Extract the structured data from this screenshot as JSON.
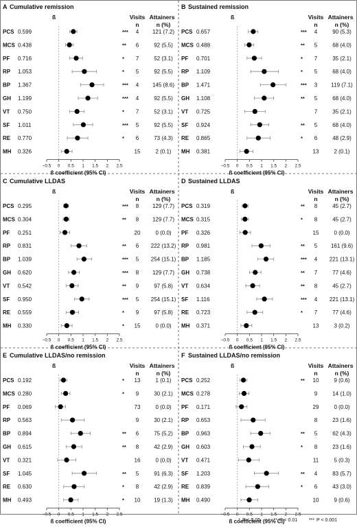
{
  "chart_data": [
    {
      "type": "forest",
      "panel": "A",
      "title": "Cumulative remission",
      "estimate_header": "ß",
      "visits_header": [
        "Visits",
        "n"
      ],
      "attainers_header": [
        "Attainers",
        "n (%)"
      ],
      "xlabel": "ß coefficient (95% CI)",
      "xticks": [
        "−0.5",
        "0",
        "0.5",
        "1",
        "1.5",
        "2",
        "2.5"
      ],
      "xlim": [
        -0.5,
        2.5
      ],
      "reference_line": 0,
      "rows": [
        {
          "label": "PCS",
          "beta_text": "0.599",
          "beta": 0.599,
          "lower": 0.45,
          "upper": 0.75,
          "sig": "***",
          "visits": "4",
          "attainers": "121 (7.2)"
        },
        {
          "label": "MCS",
          "beta_text": "0.438",
          "beta": 0.438,
          "lower": 0.28,
          "upper": 0.6,
          "sig": "**",
          "visits": "6",
          "attainers": "92 (5.5)"
        },
        {
          "label": "PF",
          "beta_text": "0.716",
          "beta": 0.716,
          "lower": 0.45,
          "upper": 0.98,
          "sig": "*",
          "visits": "7",
          "attainers": "52 (3.1)"
        },
        {
          "label": "RP",
          "beta_text": "1.053",
          "beta": 1.053,
          "lower": 0.55,
          "upper": 1.55,
          "sig": "*",
          "visits": "5",
          "attainers": "92 (5.5)"
        },
        {
          "label": "BP",
          "beta_text": "1.367",
          "beta": 1.367,
          "lower": 0.9,
          "upper": 1.85,
          "sig": "***",
          "visits": "4",
          "attainers": "145 (8.6)"
        },
        {
          "label": "GH",
          "beta_text": "1.199",
          "beta": 1.199,
          "lower": 0.8,
          "upper": 1.6,
          "sig": "***",
          "visits": "4",
          "attainers": "92 (5.5)"
        },
        {
          "label": "VT",
          "beta_text": "0.750",
          "beta": 0.75,
          "lower": 0.45,
          "upper": 1.05,
          "sig": "*",
          "visits": "7",
          "attainers": "52 (3.1)"
        },
        {
          "label": "SF",
          "beta_text": "1.011",
          "beta": 1.011,
          "lower": 0.6,
          "upper": 1.4,
          "sig": "***",
          "visits": "5",
          "attainers": "92 (5.5)"
        },
        {
          "label": "RE",
          "beta_text": "0.770",
          "beta": 0.77,
          "lower": 0.35,
          "upper": 1.2,
          "sig": "*",
          "visits": "6",
          "attainers": "73 (4.3)"
        },
        {
          "label": "MH",
          "beta_text": "0.326",
          "beta": 0.326,
          "lower": 0.1,
          "upper": 0.55,
          "sig": "",
          "visits": "15",
          "attainers": "2 (0.1)"
        }
      ]
    },
    {
      "type": "forest",
      "panel": "B",
      "title": "Sustained remission",
      "estimate_header": "ß",
      "visits_header": [
        "Visits",
        "n"
      ],
      "attainers_header": [
        "Attainers",
        "n (%)"
      ],
      "xlabel": "ß coefficient (95% CI)",
      "xticks": [
        "−0.5",
        "0",
        "0.5",
        "1",
        "1.5",
        "2",
        "2.5"
      ],
      "xlim": [
        -0.5,
        2.5
      ],
      "reference_line": 0,
      "rows": [
        {
          "label": "PCS",
          "beta_text": "0.657",
          "beta": 0.657,
          "lower": 0.45,
          "upper": 0.85,
          "sig": "***",
          "visits": "4",
          "attainers": "90 (5.3)"
        },
        {
          "label": "MCS",
          "beta_text": "0.488",
          "beta": 0.488,
          "lower": 0.3,
          "upper": 0.68,
          "sig": "**",
          "visits": "5",
          "attainers": "68 (4.0)"
        },
        {
          "label": "PF",
          "beta_text": "0.701",
          "beta": 0.701,
          "lower": 0.4,
          "upper": 1.0,
          "sig": "*",
          "visits": "7",
          "attainers": "35 (2.1)"
        },
        {
          "label": "RP",
          "beta_text": "1.109",
          "beta": 1.109,
          "lower": 0.55,
          "upper": 1.7,
          "sig": "*",
          "visits": "5",
          "attainers": "68 (4.0)"
        },
        {
          "label": "BP",
          "beta_text": "1.471",
          "beta": 1.471,
          "lower": 0.95,
          "upper": 2.0,
          "sig": "***",
          "visits": "3",
          "attainers": "119 (7.1)"
        },
        {
          "label": "GH",
          "beta_text": "1.108",
          "beta": 1.108,
          "lower": 0.7,
          "upper": 1.5,
          "sig": "**",
          "visits": "5",
          "attainers": "68 (4.0)"
        },
        {
          "label": "VT",
          "beta_text": "0.725",
          "beta": 0.725,
          "lower": 0.3,
          "upper": 1.15,
          "sig": "",
          "visits": "7",
          "attainers": "35 (2.1)"
        },
        {
          "label": "SF",
          "beta_text": "0.924",
          "beta": 0.924,
          "lower": 0.55,
          "upper": 1.3,
          "sig": "**",
          "visits": "5",
          "attainers": "68 (4.0)"
        },
        {
          "label": "RE",
          "beta_text": "0.865",
          "beta": 0.865,
          "lower": 0.4,
          "upper": 1.35,
          "sig": "*",
          "visits": "6",
          "attainers": "48 (2.9)"
        },
        {
          "label": "MH",
          "beta_text": "0.381",
          "beta": 0.381,
          "lower": 0.1,
          "upper": 0.65,
          "sig": "",
          "visits": "13",
          "attainers": "2 (0.1)"
        }
      ]
    },
    {
      "type": "forest",
      "panel": "C",
      "title": "Cumulative LLDAS",
      "estimate_header": "ß",
      "visits_header": [
        "Visits",
        "n"
      ],
      "attainers_header": [
        "Attainers",
        "n (%)"
      ],
      "xlabel": "ß coefficient (95% CI)",
      "xticks": [
        "−0.5",
        "0",
        "0.5",
        "1",
        "1.5",
        "2",
        "2.5"
      ],
      "xlim": [
        -0.5,
        2.5
      ],
      "reference_line": 0,
      "rows": [
        {
          "label": "PCS",
          "beta_text": "0.295",
          "beta": 0.295,
          "lower": 0.2,
          "upper": 0.4,
          "sig": "***",
          "visits": "8",
          "attainers": "129 (7.7)"
        },
        {
          "label": "MCS",
          "beta_text": "0.304",
          "beta": 0.304,
          "lower": 0.18,
          "upper": 0.43,
          "sig": "**",
          "visits": "8",
          "attainers": "129 (7.7)"
        },
        {
          "label": "PF",
          "beta_text": "0.251",
          "beta": 0.251,
          "lower": 0.05,
          "upper": 0.45,
          "sig": "",
          "visits": "20",
          "attainers": "0 (0.0)"
        },
        {
          "label": "RP",
          "beta_text": "0.831",
          "beta": 0.831,
          "lower": 0.5,
          "upper": 1.15,
          "sig": "**",
          "visits": "6",
          "attainers": "222 (13.2)"
        },
        {
          "label": "BP",
          "beta_text": "1.039",
          "beta": 1.039,
          "lower": 0.75,
          "upper": 1.35,
          "sig": "***",
          "visits": "5",
          "attainers": "254 (15.1)"
        },
        {
          "label": "GH",
          "beta_text": "0.620",
          "beta": 0.62,
          "lower": 0.4,
          "upper": 0.85,
          "sig": "***",
          "visits": "8",
          "attainers": "129 (7.7)"
        },
        {
          "label": "VT",
          "beta_text": "0.542",
          "beta": 0.542,
          "lower": 0.3,
          "upper": 0.8,
          "sig": "**",
          "visits": "9",
          "attainers": "97 (5.8)"
        },
        {
          "label": "SF",
          "beta_text": "0.950",
          "beta": 0.95,
          "lower": 0.65,
          "upper": 1.25,
          "sig": "***",
          "visits": "5",
          "attainers": "254 (15.1)"
        },
        {
          "label": "RE",
          "beta_text": "0.559",
          "beta": 0.559,
          "lower": 0.3,
          "upper": 0.82,
          "sig": "*",
          "visits": "9",
          "attainers": "97 (5.8)"
        },
        {
          "label": "MH",
          "beta_text": "0.330",
          "beta": 0.33,
          "lower": 0.1,
          "upper": 0.55,
          "sig": "*",
          "visits": "15",
          "attainers": "0 (0.0)"
        }
      ]
    },
    {
      "type": "forest",
      "panel": "D",
      "title": "Sustained LLDAS",
      "estimate_header": "ß",
      "visits_header": [
        "Visits",
        "n"
      ],
      "attainers_header": [
        "Attainers",
        "n (%)"
      ],
      "xlabel": "ß coefficient (95% CI)",
      "xticks": [
        "−0.5",
        "0",
        "0.5",
        "1",
        "1.5",
        "2",
        "2.5"
      ],
      "xlim": [
        -0.5,
        2.5
      ],
      "reference_line": 0,
      "rows": [
        {
          "label": "PCS",
          "beta_text": "0.319",
          "beta": 0.319,
          "lower": 0.2,
          "upper": 0.44,
          "sig": "**",
          "visits": "8",
          "attainers": "45 (2.7)"
        },
        {
          "label": "MCS",
          "beta_text": "0.315",
          "beta": 0.315,
          "lower": 0.17,
          "upper": 0.46,
          "sig": "*",
          "visits": "8",
          "attainers": "45 (2.7)"
        },
        {
          "label": "PF",
          "beta_text": "0.326",
          "beta": 0.326,
          "lower": 0.1,
          "upper": 0.55,
          "sig": "",
          "visits": "15",
          "attainers": "0 (0.0)"
        },
        {
          "label": "RP",
          "beta_text": "0.981",
          "beta": 0.981,
          "lower": 0.6,
          "upper": 1.35,
          "sig": "**",
          "visits": "5",
          "attainers": "161 (9.6)"
        },
        {
          "label": "BP",
          "beta_text": "1.185",
          "beta": 1.185,
          "lower": 0.85,
          "upper": 1.5,
          "sig": "***",
          "visits": "4",
          "attainers": "221 (13.1)"
        },
        {
          "label": "GH",
          "beta_text": "0.738",
          "beta": 0.738,
          "lower": 0.5,
          "upper": 0.98,
          "sig": "**",
          "visits": "7",
          "attainers": "77 (4.6)"
        },
        {
          "label": "VT",
          "beta_text": "0.634",
          "beta": 0.634,
          "lower": 0.35,
          "upper": 0.92,
          "sig": "**",
          "visits": "8",
          "attainers": "45 (2.7)"
        },
        {
          "label": "SF",
          "beta_text": "1.116",
          "beta": 1.116,
          "lower": 0.8,
          "upper": 1.45,
          "sig": "***",
          "visits": "4",
          "attainers": "221 (13.1)"
        },
        {
          "label": "RE",
          "beta_text": "0.723",
          "beta": 0.723,
          "lower": 0.4,
          "upper": 1.05,
          "sig": "*",
          "visits": "7",
          "attainers": "77 (4.6)"
        },
        {
          "label": "MH",
          "beta_text": "0.371",
          "beta": 0.371,
          "lower": 0.15,
          "upper": 0.6,
          "sig": "",
          "visits": "13",
          "attainers": "3 (0.2)"
        }
      ]
    },
    {
      "type": "forest",
      "panel": "E",
      "title": "Cumulative LLDAS/no remission",
      "estimate_header": "ß",
      "visits_header": [
        "Visits",
        "n"
      ],
      "attainers_header": [
        "Attainers",
        "n (%)"
      ],
      "xlabel": "ß coefficient (95% CI)",
      "xticks": [
        "−0.5",
        "0",
        "0.5",
        "1",
        "1.5",
        "2",
        "2.5"
      ],
      "xlim": [
        -0.5,
        2.5
      ],
      "reference_line": 0,
      "rows": [
        {
          "label": "PCS",
          "beta_text": "0.192",
          "beta": 0.192,
          "lower": 0.05,
          "upper": 0.33,
          "sig": "*",
          "visits": "13",
          "attainers": "1 (0.1)"
        },
        {
          "label": "MCS",
          "beta_text": "0.280",
          "beta": 0.28,
          "lower": 0.1,
          "upper": 0.46,
          "sig": "*",
          "visits": "9",
          "attainers": "30 (2.1)"
        },
        {
          "label": "PF",
          "beta_text": "0.069",
          "beta": 0.069,
          "lower": -0.15,
          "upper": 0.28,
          "sig": "",
          "visits": "73",
          "attainers": "0 (0.0)"
        },
        {
          "label": "RP",
          "beta_text": "0.563",
          "beta": 0.563,
          "lower": 0.1,
          "upper": 1.05,
          "sig": "",
          "visits": "9",
          "attainers": "30 (2.1)"
        },
        {
          "label": "BP",
          "beta_text": "0.894",
          "beta": 0.894,
          "lower": 0.5,
          "upper": 1.3,
          "sig": "**",
          "visits": "6",
          "attainers": "75 (5.2)"
        },
        {
          "label": "GH",
          "beta_text": "0.615",
          "beta": 0.615,
          "lower": 0.3,
          "upper": 0.95,
          "sig": "**",
          "visits": "8",
          "attainers": "42 (2.9)"
        },
        {
          "label": "VT",
          "beta_text": "0.321",
          "beta": 0.321,
          "lower": -0.05,
          "upper": 0.7,
          "sig": "",
          "visits": "16",
          "attainers": "0 (0.0)"
        },
        {
          "label": "SF",
          "beta_text": "1.045",
          "beta": 1.045,
          "lower": 0.55,
          "upper": 1.55,
          "sig": "**",
          "visits": "5",
          "attainers": "91 (6.3)"
        },
        {
          "label": "RE",
          "beta_text": "0.630",
          "beta": 0.63,
          "lower": 0.2,
          "upper": 1.05,
          "sig": "*",
          "visits": "8",
          "attainers": "42 (2.9)"
        },
        {
          "label": "MH",
          "beta_text": "0.493",
          "beta": 0.493,
          "lower": 0.2,
          "upper": 0.8,
          "sig": "*",
          "visits": "10",
          "attainers": "19 (1.3)"
        }
      ]
    },
    {
      "type": "forest",
      "panel": "F",
      "title": "Sustained LLDAS/no remission",
      "estimate_header": "ß",
      "visits_header": [
        "Visits",
        "n"
      ],
      "attainers_header": [
        "Attainers",
        "n (%)"
      ],
      "xlabel": "ß coefficient (95% CI)",
      "xticks": [
        "−0.5",
        "0",
        "0.5",
        "1",
        "1.5",
        "2",
        "2.5"
      ],
      "xlim": [
        -0.5,
        2.5
      ],
      "reference_line": 0,
      "rows": [
        {
          "label": "PCS",
          "beta_text": "0.252",
          "beta": 0.252,
          "lower": 0.1,
          "upper": 0.4,
          "sig": "**",
          "visits": "10",
          "attainers": "9 (0.6)"
        },
        {
          "label": "MCS",
          "beta_text": "0.278",
          "beta": 0.278,
          "lower": 0.08,
          "upper": 0.48,
          "sig": "",
          "visits": "9",
          "attainers": "14 (1.0)"
        },
        {
          "label": "PF",
          "beta_text": "0.171",
          "beta": 0.171,
          "lower": -0.05,
          "upper": 0.4,
          "sig": "",
          "visits": "29",
          "attainers": "0 (0.0)"
        },
        {
          "label": "RP",
          "beta_text": "0.653",
          "beta": 0.653,
          "lower": 0.15,
          "upper": 1.15,
          "sig": "",
          "visits": "8",
          "attainers": "23 (1.6)"
        },
        {
          "label": "BP",
          "beta_text": "0.963",
          "beta": 0.963,
          "lower": 0.55,
          "upper": 1.35,
          "sig": "**",
          "visits": "5",
          "attainers": "62 (4.3)"
        },
        {
          "label": "GH",
          "beta_text": "0.603",
          "beta": 0.603,
          "lower": 0.25,
          "upper": 0.95,
          "sig": "*",
          "visits": "8",
          "attainers": "23 (1.6)"
        },
        {
          "label": "VT",
          "beta_text": "0.471",
          "beta": 0.471,
          "lower": 0.05,
          "upper": 0.9,
          "sig": "",
          "visits": "11",
          "attainers": "5 (0.3)"
        },
        {
          "label": "SF",
          "beta_text": "1.203",
          "beta": 1.203,
          "lower": 0.7,
          "upper": 1.7,
          "sig": "**",
          "visits": "4",
          "attainers": "83 (5.7)"
        },
        {
          "label": "RE",
          "beta_text": "0.839",
          "beta": 0.839,
          "lower": 0.35,
          "upper": 1.3,
          "sig": "*",
          "visits": "6",
          "attainers": "43 (3.0)"
        },
        {
          "label": "MH",
          "beta_text": "0.490",
          "beta": 0.49,
          "lower": 0.15,
          "upper": 0.85,
          "sig": "",
          "visits": "10",
          "attainers": "9 (0.6)"
        }
      ]
    }
  ],
  "significance_legend": [
    {
      "mark": "*",
      "label": "P < 0.05"
    },
    {
      "mark": "**",
      "label": "P < 0.01"
    },
    {
      "mark": "***",
      "label": "P < 0.001"
    }
  ]
}
